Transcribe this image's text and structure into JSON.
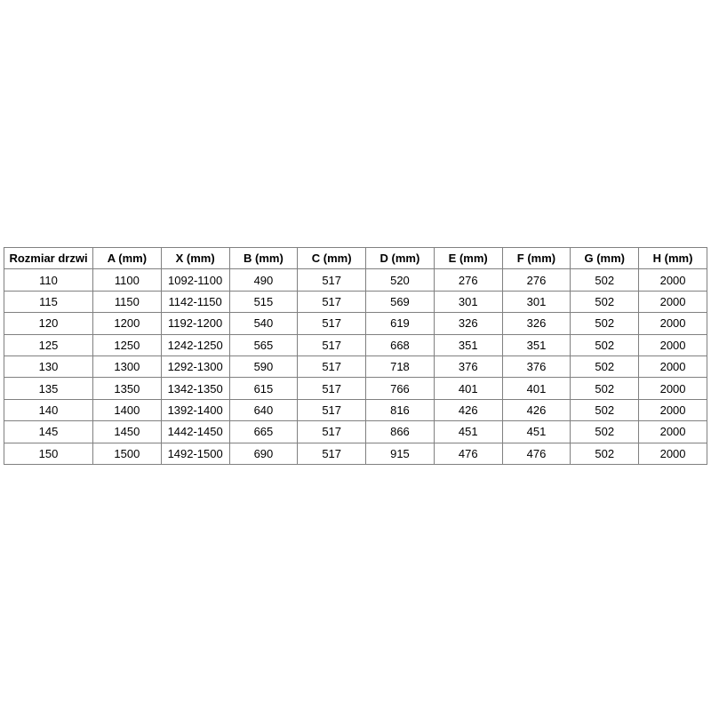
{
  "table": {
    "name": "door-size-dimensions-table",
    "header": [
      "Rozmiar drzwi",
      "A (mm)",
      "X (mm)",
      "B (mm)",
      "C (mm)",
      "D (mm)",
      "E (mm)",
      "F (mm)",
      "G (mm)",
      "H (mm)"
    ],
    "rows": [
      [
        "110",
        "1100",
        "1092-1100",
        "490",
        "517",
        "520",
        "276",
        "276",
        "502",
        "2000"
      ],
      [
        "115",
        "1150",
        "1142-1150",
        "515",
        "517",
        "569",
        "301",
        "301",
        "502",
        "2000"
      ],
      [
        "120",
        "1200",
        "1192-1200",
        "540",
        "517",
        "619",
        "326",
        "326",
        "502",
        "2000"
      ],
      [
        "125",
        "1250",
        "1242-1250",
        "565",
        "517",
        "668",
        "351",
        "351",
        "502",
        "2000"
      ],
      [
        "130",
        "1300",
        "1292-1300",
        "590",
        "517",
        "718",
        "376",
        "376",
        "502",
        "2000"
      ],
      [
        "135",
        "1350",
        "1342-1350",
        "615",
        "517",
        "766",
        "401",
        "401",
        "502",
        "2000"
      ],
      [
        "140",
        "1400",
        "1392-1400",
        "640",
        "517",
        "816",
        "426",
        "426",
        "502",
        "2000"
      ],
      [
        "145",
        "1450",
        "1442-1450",
        "665",
        "517",
        "866",
        "451",
        "451",
        "502",
        "2000"
      ],
      [
        "150",
        "1500",
        "1492-1500",
        "690",
        "517",
        "915",
        "476",
        "476",
        "502",
        "2000"
      ]
    ],
    "colors": {
      "border_inner": "#808080",
      "border_outer": "#595959",
      "text": "#000000",
      "background": "#ffffff"
    }
  }
}
